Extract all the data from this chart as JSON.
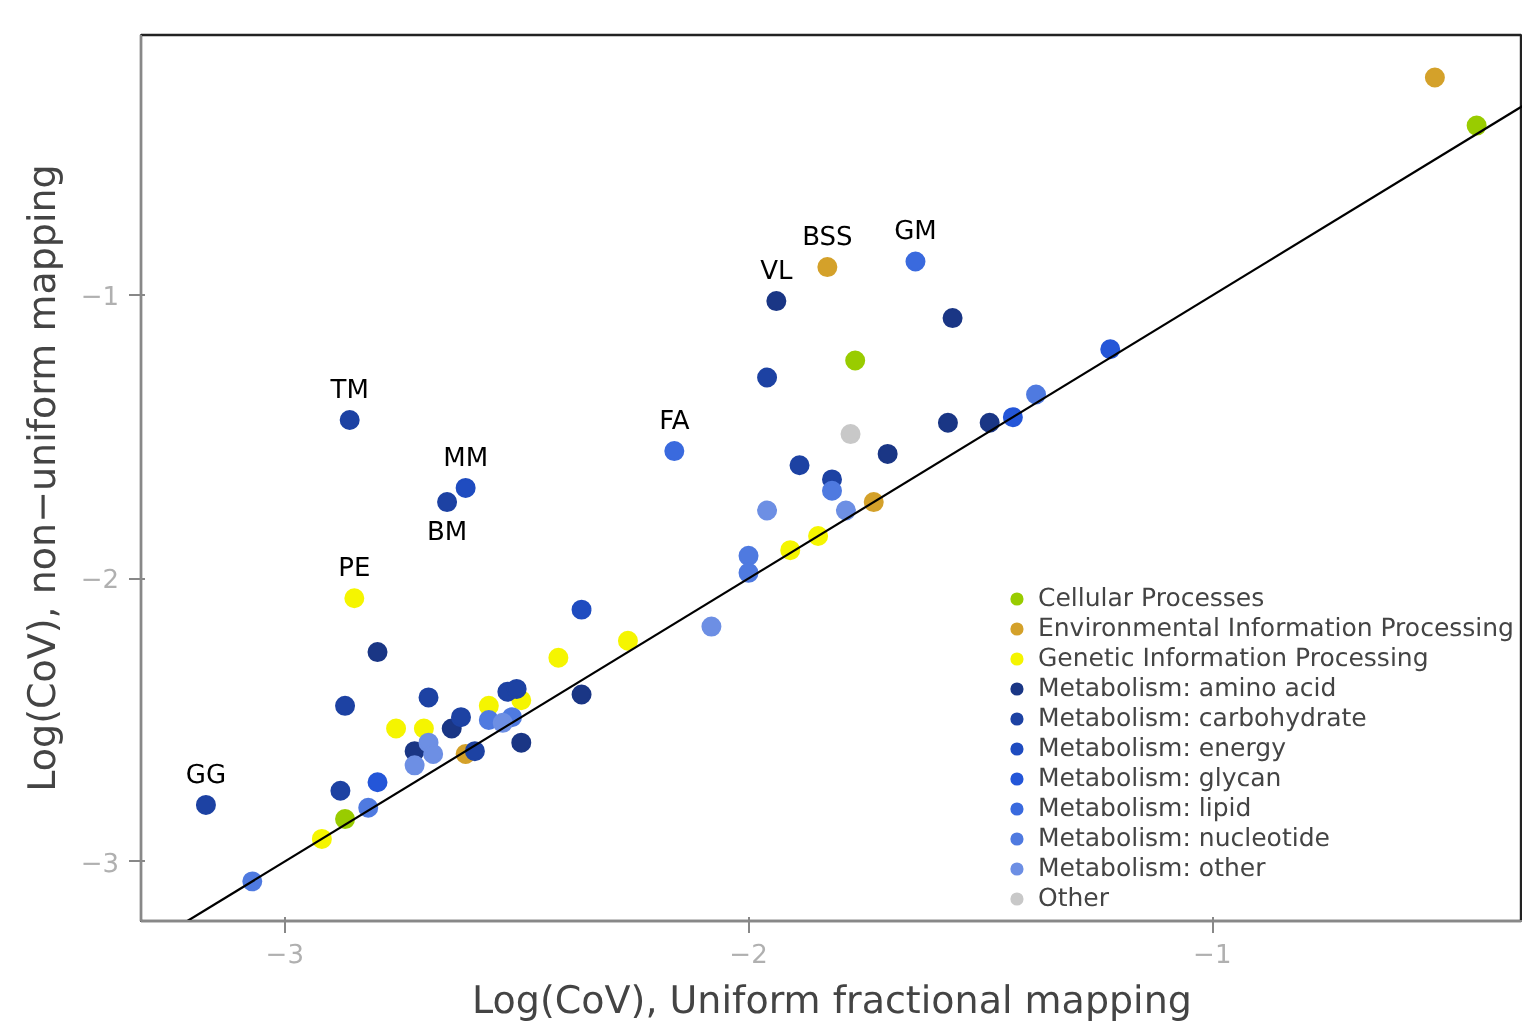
{
  "chart_data": {
    "type": "scatter",
    "xlabel": "Log(CoV), Uniform fractional mapping",
    "ylabel": "Log(CoV), non−uniform mapping",
    "xlim": [
      -3.31,
      -0.33
    ],
    "ylim": [
      -3.21,
      -0.08
    ],
    "xticks": [
      {
        "value": -3,
        "label": "−3"
      },
      {
        "value": -2,
        "label": "−2"
      },
      {
        "value": -1,
        "label": "−1"
      }
    ],
    "yticks": [
      {
        "value": -3,
        "label": "−3"
      },
      {
        "value": -2,
        "label": "−2"
      },
      {
        "value": -1,
        "label": "−1"
      }
    ],
    "grid": false,
    "legend": "bottom right",
    "marker": "circle",
    "series": [
      {
        "name": "Cellular Processes",
        "color": "#99cc00",
        "x": [
          -0.43,
          -1.77,
          -2.87
        ],
        "values": [
          -0.4,
          -1.23,
          -2.85
        ]
      },
      {
        "name": "Environmental Information Processing",
        "color": "#d4a12a",
        "x": [
          -0.52,
          -1.83,
          -1.73,
          -2.61
        ],
        "values": [
          -0.23,
          -0.9,
          -1.73,
          -2.62
        ]
      },
      {
        "name": "Genetic Information Processing",
        "color": "#f5f500",
        "x": [
          -2.85,
          -2.92,
          -2.76,
          -2.7,
          -2.56,
          -2.49,
          -2.41,
          -2.26,
          -1.91,
          -1.85
        ],
        "values": [
          -2.07,
          -2.92,
          -2.53,
          -2.53,
          -2.45,
          -2.43,
          -2.28,
          -2.22,
          -1.9,
          -1.85
        ]
      },
      {
        "name": "Metabolism: amino acid",
        "color": "#1a3685",
        "x": [
          -1.94,
          -1.56,
          -1.57,
          -1.48,
          -1.7,
          -2.64,
          -2.72,
          -2.49,
          -2.36,
          -2.8
        ],
        "values": [
          -1.02,
          -1.08,
          -1.45,
          -1.45,
          -1.56,
          -2.53,
          -2.61,
          -2.58,
          -2.41,
          -2.26
        ]
      },
      {
        "name": "Metabolism: carbohydrate",
        "color": "#1d42a3",
        "x": [
          -2.86,
          -2.65,
          -3.17,
          -1.96,
          -1.89,
          -1.82,
          -2.87,
          -2.69,
          -2.62,
          -2.59,
          -2.52,
          -2.5,
          -2.88
        ],
        "values": [
          -1.44,
          -1.73,
          -2.8,
          -1.29,
          -1.6,
          -1.65,
          -2.45,
          -2.42,
          -2.49,
          -2.61,
          -2.4,
          -2.39,
          -2.75
        ]
      },
      {
        "name": "Metabolism: energy",
        "color": "#1f4cc0",
        "x": [
          -2.61,
          -2.36
        ],
        "values": [
          -1.68,
          -2.11
        ]
      },
      {
        "name": "Metabolism: glycan",
        "color": "#2456d8",
        "x": [
          -1.22,
          -1.43,
          -2.8
        ],
        "values": [
          -1.19,
          -1.43,
          -2.72
        ]
      },
      {
        "name": "Metabolism: lipid",
        "color": "#3a6ade",
        "x": [
          -1.64,
          -2.16
        ],
        "values": [
          -0.88,
          -1.55
        ]
      },
      {
        "name": "Metabolism: nucleotide",
        "color": "#4f7ae0",
        "x": [
          -1.38,
          -1.82,
          -2.0,
          -2.0,
          -2.56,
          -2.51,
          -2.82,
          -3.07
        ],
        "values": [
          -1.35,
          -1.69,
          -1.92,
          -1.98,
          -2.5,
          -2.49,
          -2.81,
          -3.07
        ]
      },
      {
        "name": "Metabolism: other",
        "color": "#6d8fe4",
        "x": [
          -1.79,
          -1.96,
          -2.08,
          -2.53,
          -2.69,
          -2.68,
          -2.72
        ],
        "values": [
          -1.76,
          -1.76,
          -2.17,
          -2.51,
          -2.58,
          -2.62,
          -2.66
        ]
      },
      {
        "name": "Other",
        "color": "#c8c8c8",
        "x": [
          -1.78
        ],
        "values": [
          -1.49
        ]
      },
      {
        "type": "line",
        "marker": "none",
        "color": "#000000",
        "x": [
          -3.21,
          -0.33
        ],
        "values": [
          -3.21,
          -0.33
        ]
      }
    ],
    "annotations": [
      {
        "text": "TM",
        "x": -2.86,
        "y": -1.44
      },
      {
        "text": "MM",
        "x": -2.61,
        "y": -1.68
      },
      {
        "text": "BM",
        "x": -2.65,
        "y": -1.73
      },
      {
        "text": "PE",
        "x": -2.85,
        "y": -2.07
      },
      {
        "text": "GG",
        "x": -3.17,
        "y": -2.8
      },
      {
        "text": "FA",
        "x": -2.16,
        "y": -1.55
      },
      {
        "text": "VL",
        "x": -1.94,
        "y": -1.02
      },
      {
        "text": "BSS",
        "x": -1.83,
        "y": -0.9
      },
      {
        "text": "GM",
        "x": -1.64,
        "y": -0.88
      }
    ]
  }
}
